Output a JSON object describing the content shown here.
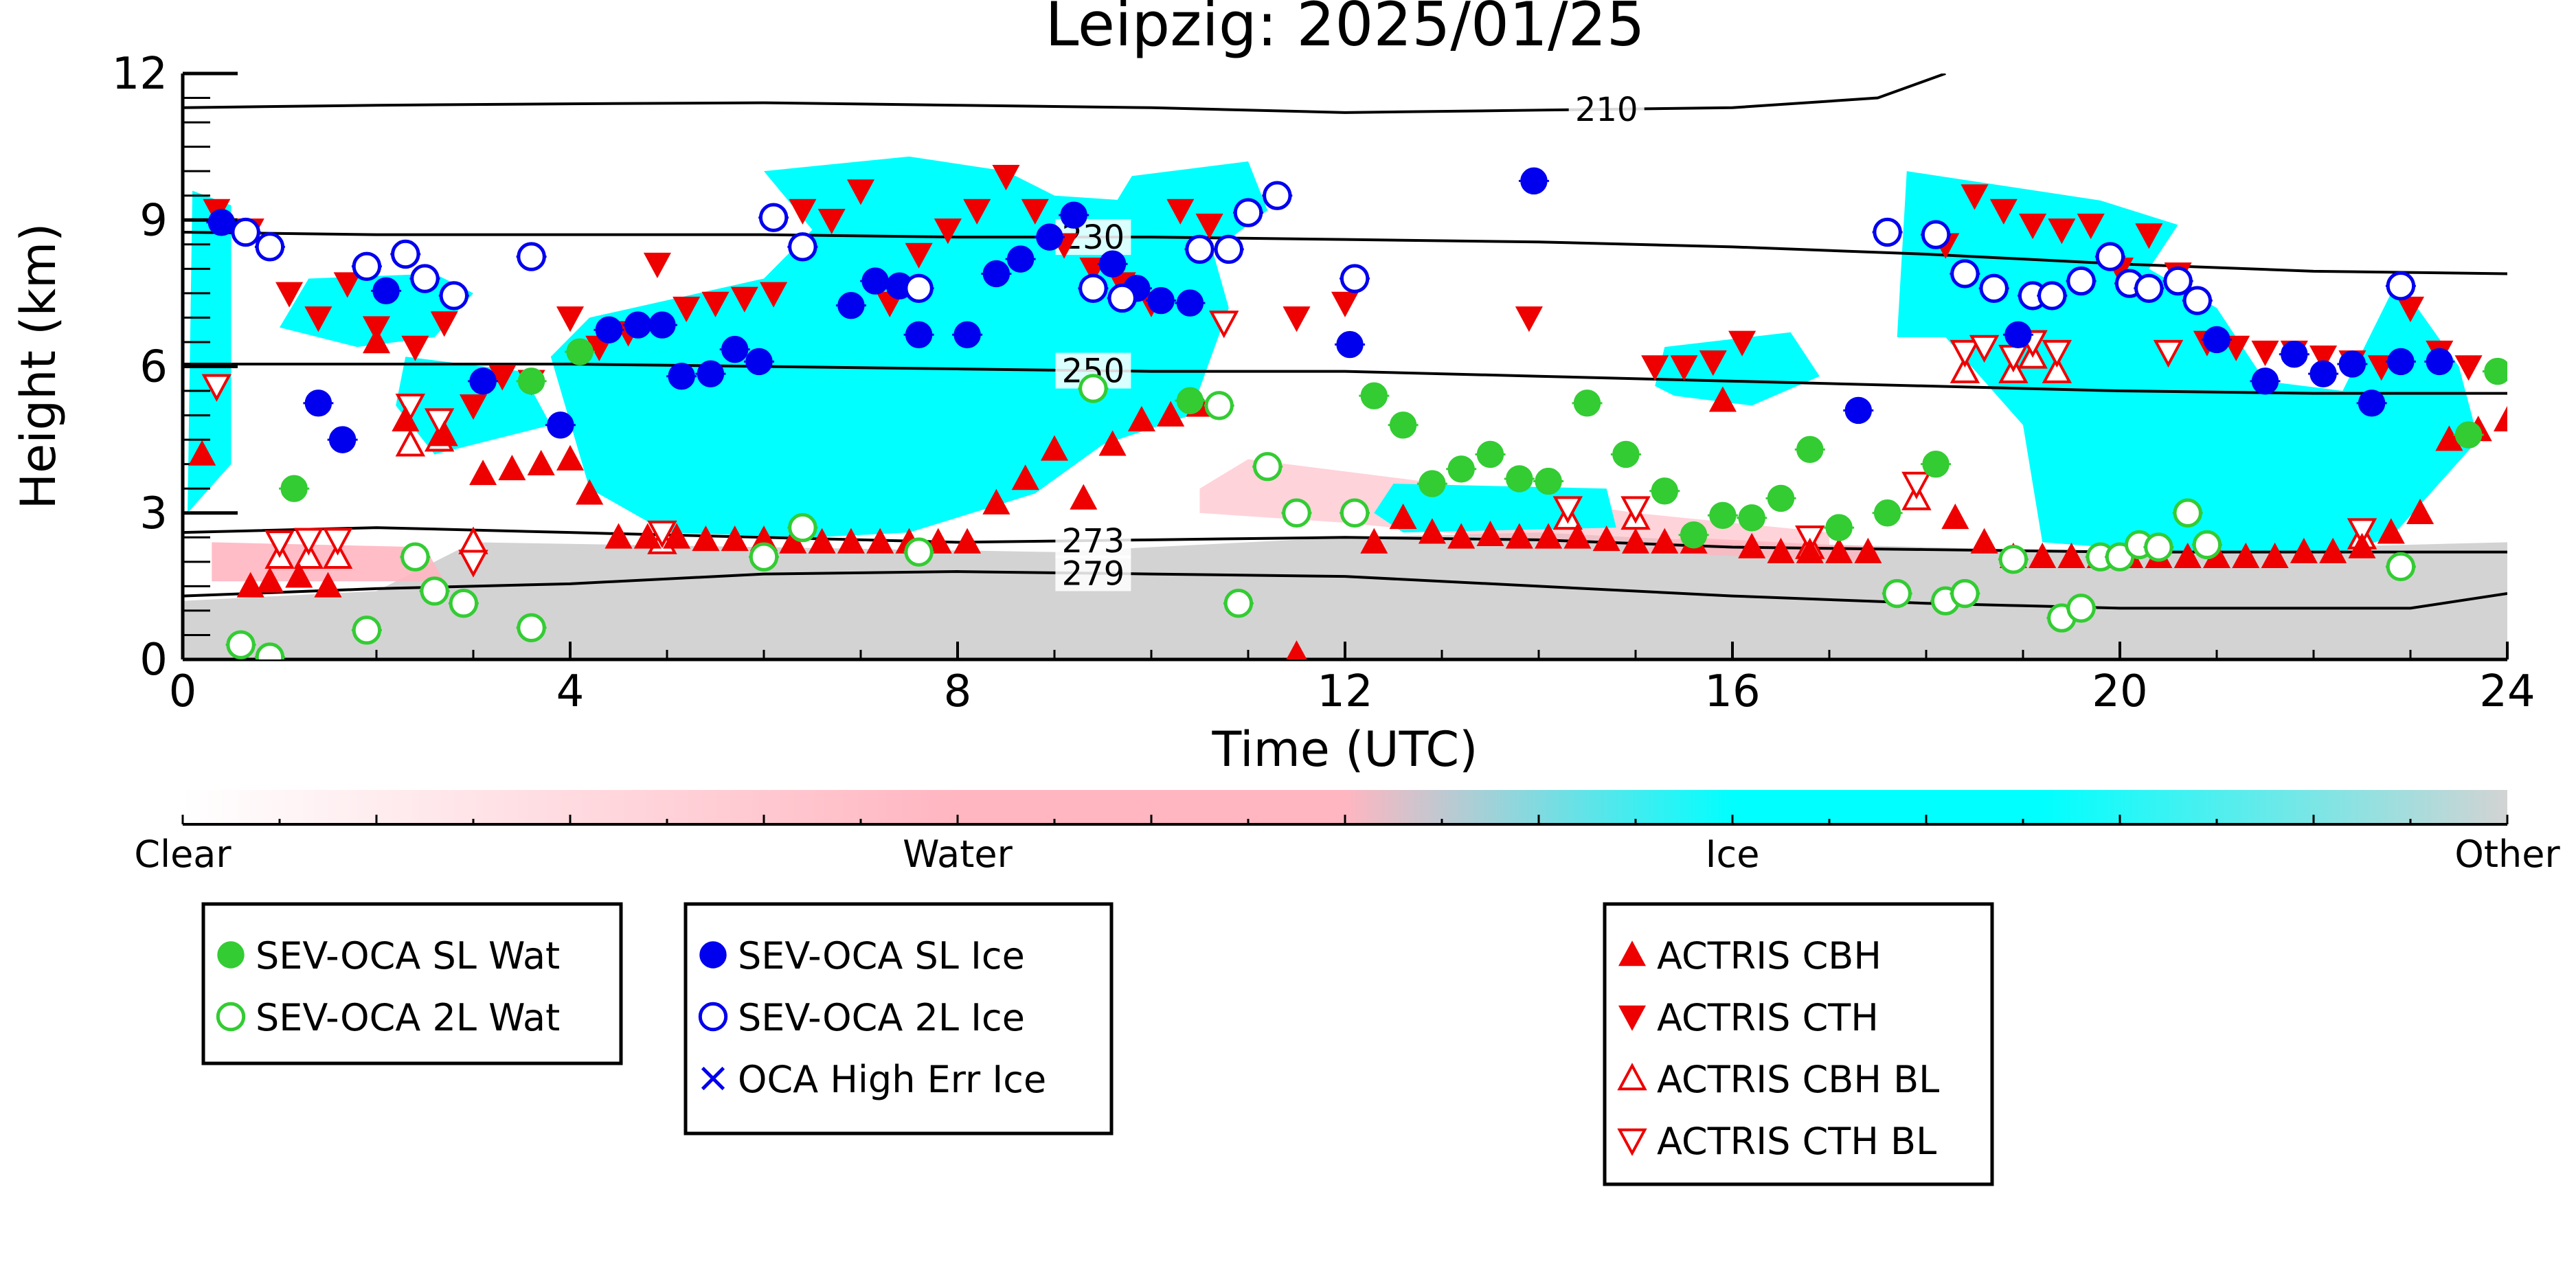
{
  "chart_data": {
    "type": "scatter",
    "title": "Leipzig: 2025/01/25",
    "xlabel": "Time (UTC)",
    "ylabel": "Height (km)",
    "xlim": [
      0,
      24
    ],
    "ylim": [
      0,
      12
    ],
    "x_ticks": [
      "0",
      "4",
      "8",
      "12",
      "16",
      "20",
      "24"
    ],
    "y_ticks": [
      "0",
      "3",
      "6",
      "9",
      "12"
    ],
    "colorbar": {
      "labels": [
        "Clear",
        "Water",
        "Ice",
        "Other"
      ],
      "colors": [
        "#ffffff",
        "#ffb6c1",
        "#00ffff",
        "#d3d3d3"
      ]
    },
    "isotherms": [
      {
        "label": "210",
        "x": [
          0,
          2,
          4,
          6,
          8,
          10,
          12,
          14,
          16,
          17.5,
          18.2
        ],
        "y": [
          11.3,
          11.35,
          11.38,
          11.4,
          11.35,
          11.3,
          11.2,
          11.25,
          11.3,
          11.5,
          12.0
        ]
      },
      {
        "label": "230",
        "x": [
          0,
          2,
          4,
          6,
          8,
          10,
          12,
          14,
          16,
          18,
          20,
          22,
          24
        ],
        "y": [
          8.75,
          8.7,
          8.7,
          8.7,
          8.65,
          8.65,
          8.6,
          8.55,
          8.45,
          8.3,
          8.1,
          7.95,
          7.9
        ]
      },
      {
        "label": "250",
        "x": [
          0,
          2,
          4,
          6,
          8,
          10,
          12,
          14,
          16,
          18,
          20,
          22,
          24
        ],
        "y": [
          6.05,
          6.05,
          6.05,
          6.0,
          5.95,
          5.9,
          5.9,
          5.8,
          5.7,
          5.6,
          5.5,
          5.45,
          5.45
        ]
      },
      {
        "label": "273",
        "x": [
          0,
          2,
          4,
          6,
          8,
          10,
          12,
          14,
          16,
          18,
          20,
          22,
          24
        ],
        "y": [
          2.6,
          2.7,
          2.6,
          2.5,
          2.4,
          2.45,
          2.5,
          2.45,
          2.3,
          2.25,
          2.2,
          2.2,
          2.2
        ]
      },
      {
        "label": "279",
        "x": [
          0,
          2,
          4,
          6,
          8,
          10,
          12,
          14,
          16,
          18,
          19,
          20,
          22,
          23,
          24
        ],
        "y": [
          1.3,
          1.45,
          1.55,
          1.75,
          1.8,
          1.75,
          1.7,
          1.5,
          1.3,
          1.15,
          1.1,
          1.05,
          1.05,
          1.05,
          1.35
        ]
      }
    ],
    "series": [
      {
        "name": "SEV-OCA SL Wat",
        "marker": "filled-circle",
        "color": "#33cc33",
        "x": [
          1.15,
          3.6,
          4.1,
          10.4,
          12.3,
          12.6,
          12.9,
          13.2,
          13.5,
          13.8,
          14.1,
          14.5,
          14.9,
          15.3,
          15.6,
          15.9,
          16.2,
          16.5,
          16.8,
          17.1,
          17.6,
          18.1,
          23.6,
          23.9
        ],
        "y": [
          3.5,
          5.7,
          6.3,
          5.3,
          5.4,
          4.8,
          3.6,
          3.9,
          4.2,
          3.7,
          3.65,
          5.25,
          4.2,
          3.45,
          2.55,
          2.95,
          2.9,
          3.3,
          4.3,
          2.7,
          3.0,
          4.0,
          4.6,
          5.9
        ]
      },
      {
        "name": "SEV-OCA 2L Wat",
        "marker": "open-circle",
        "color": "#33cc33",
        "x": [
          0.6,
          0.9,
          1.9,
          2.4,
          2.6,
          2.9,
          3.6,
          6.0,
          6.4,
          7.6,
          9.4,
          10.7,
          10.9,
          11.2,
          11.5,
          12.1,
          17.7,
          18.2,
          18.4,
          18.9,
          19.4,
          19.6,
          19.8,
          20.0,
          20.2,
          20.4,
          20.7,
          20.9,
          22.9
        ],
        "y": [
          0.3,
          0.05,
          0.6,
          2.1,
          1.4,
          1.15,
          0.65,
          2.1,
          2.7,
          2.2,
          5.55,
          5.2,
          1.15,
          3.95,
          3.0,
          3.0,
          1.35,
          1.2,
          1.35,
          2.05,
          0.85,
          1.05,
          2.1,
          2.1,
          2.35,
          2.3,
          3.0,
          2.35,
          1.9
        ]
      },
      {
        "name": "SEV-OCA SL Ice",
        "marker": "filled-circle",
        "color": "#0000ee",
        "x": [
          0.4,
          1.4,
          1.65,
          2.1,
          3.1,
          3.9,
          4.4,
          4.7,
          4.95,
          5.15,
          5.45,
          5.7,
          5.95,
          6.9,
          7.15,
          7.4,
          7.6,
          8.1,
          8.4,
          8.65,
          8.95,
          9.2,
          9.6,
          9.85,
          10.1,
          10.4,
          12.05,
          13.95,
          17.3,
          18.95,
          21.0,
          21.5,
          21.8,
          22.1,
          22.4,
          22.6,
          22.9,
          23.3
        ],
        "y": [
          8.95,
          5.25,
          4.5,
          7.55,
          5.7,
          4.8,
          6.75,
          6.85,
          6.85,
          5.8,
          5.85,
          6.35,
          6.1,
          7.25,
          7.75,
          7.65,
          6.65,
          6.65,
          7.9,
          8.2,
          8.65,
          9.1,
          8.1,
          7.6,
          7.35,
          7.3,
          6.45,
          9.8,
          5.1,
          6.65,
          6.55,
          5.7,
          6.25,
          5.85,
          6.05,
          5.25,
          6.1,
          6.1
        ]
      },
      {
        "name": "SEV-OCA 2L Ice",
        "marker": "open-circle",
        "color": "#0000ee",
        "x": [
          0.65,
          0.9,
          1.9,
          2.3,
          2.5,
          2.8,
          3.6,
          6.1,
          6.4,
          7.6,
          9.4,
          9.7,
          10.5,
          10.8,
          11.0,
          11.3,
          12.1,
          17.6,
          18.1,
          18.4,
          18.7,
          19.1,
          19.3,
          19.6,
          19.9,
          20.1,
          20.3,
          20.6,
          20.8,
          22.9
        ],
        "y": [
          8.75,
          8.45,
          8.05,
          8.3,
          7.8,
          7.45,
          8.25,
          9.05,
          8.45,
          7.6,
          7.6,
          7.4,
          8.4,
          8.4,
          9.15,
          9.5,
          7.8,
          8.75,
          8.7,
          7.9,
          7.6,
          7.45,
          7.45,
          7.75,
          8.25,
          7.7,
          7.6,
          7.75,
          7.35,
          7.65
        ]
      },
      {
        "name": "OCA High Err Ice",
        "marker": "x",
        "color": "#0000ee",
        "x": [],
        "y": []
      },
      {
        "name": "ACTRIS CBH",
        "marker": "filled-triangle-up",
        "color": "#ee0000",
        "x": [
          0.2,
          0.7,
          0.9,
          1.2,
          1.5,
          2.0,
          2.3,
          2.7,
          3.1,
          3.4,
          3.7,
          4.0,
          4.2,
          4.5,
          4.8,
          5.1,
          5.4,
          5.7,
          6.0,
          6.3,
          6.6,
          6.9,
          7.2,
          7.5,
          7.8,
          8.1,
          8.4,
          8.7,
          9.0,
          9.3,
          9.6,
          9.9,
          10.2,
          10.5,
          11.5,
          12.3,
          12.6,
          12.9,
          13.2,
          13.5,
          13.8,
          14.1,
          14.4,
          14.7,
          15.0,
          15.3,
          15.6,
          15.9,
          16.2,
          16.5,
          16.8,
          17.1,
          17.4,
          18.3,
          18.6,
          18.9,
          19.2,
          19.5,
          19.8,
          20.1,
          20.4,
          20.7,
          21.0,
          21.3,
          21.6,
          21.9,
          22.2,
          22.5,
          22.8,
          23.1,
          23.4,
          23.7,
          24.0
        ],
        "y": [
          4.2,
          1.5,
          1.6,
          1.7,
          1.5,
          6.5,
          4.9,
          4.6,
          3.8,
          3.9,
          4.0,
          4.1,
          3.4,
          2.5,
          2.5,
          2.5,
          2.45,
          2.45,
          2.45,
          2.4,
          2.4,
          2.4,
          2.4,
          2.4,
          2.4,
          2.4,
          3.2,
          3.7,
          4.3,
          3.3,
          4.4,
          4.9,
          5.0,
          5.2,
          0.1,
          2.4,
          2.9,
          2.6,
          2.5,
          2.55,
          2.5,
          2.5,
          2.5,
          2.45,
          2.4,
          2.4,
          2.4,
          5.3,
          2.3,
          2.2,
          2.2,
          2.2,
          2.2,
          2.9,
          2.4,
          2.1,
          2.1,
          2.1,
          2.1,
          2.1,
          2.1,
          2.1,
          2.1,
          2.1,
          2.1,
          2.2,
          2.2,
          2.3,
          2.6,
          3.0,
          4.5,
          4.7,
          4.9
        ]
      },
      {
        "name": "ACTRIS CTH",
        "marker": "filled-triangle-down",
        "color": "#ee0000",
        "x": [
          0.35,
          0.7,
          1.1,
          1.4,
          1.7,
          2.0,
          2.4,
          2.7,
          3.0,
          3.3,
          3.6,
          4.0,
          4.3,
          4.6,
          4.9,
          5.2,
          5.5,
          5.8,
          6.1,
          6.4,
          6.7,
          7.0,
          7.3,
          7.6,
          7.9,
          8.2,
          8.5,
          8.8,
          9.1,
          9.4,
          9.7,
          10.0,
          10.3,
          10.6,
          11.5,
          12.0,
          13.9,
          15.2,
          15.5,
          15.8,
          16.1,
          18.2,
          18.5,
          18.8,
          19.1,
          19.4,
          19.7,
          20.0,
          20.3,
          20.6,
          20.9,
          21.2,
          21.5,
          21.8,
          22.1,
          22.4,
          22.7,
          23.0,
          23.3,
          23.6
        ],
        "y": [
          9.2,
          8.8,
          7.5,
          7.0,
          7.7,
          6.8,
          6.4,
          6.9,
          5.2,
          5.8,
          5.7,
          7.0,
          6.4,
          6.7,
          8.1,
          7.2,
          7.3,
          7.4,
          7.5,
          9.2,
          9.0,
          9.6,
          7.3,
          8.3,
          8.8,
          9.2,
          9.9,
          9.2,
          8.5,
          8.0,
          7.7,
          7.3,
          9.2,
          8.9,
          7.0,
          7.3,
          7.0,
          6.0,
          6.0,
          6.1,
          6.5,
          8.5,
          9.5,
          9.2,
          8.9,
          8.8,
          8.9,
          8.0,
          8.7,
          7.9,
          6.5,
          6.4,
          6.3,
          6.3,
          6.2,
          6.1,
          6.0,
          7.2,
          6.3,
          6.0
        ]
      },
      {
        "name": "ACTRIS CBH BL",
        "marker": "open-triangle-up",
        "color": "#ee0000",
        "x": [
          1.0,
          1.3,
          1.6,
          2.35,
          2.65,
          3.0,
          4.95,
          14.3,
          15.0,
          16.8,
          17.9,
          18.4,
          18.9,
          19.1,
          19.35,
          22.5
        ],
        "y": [
          2.1,
          2.1,
          2.1,
          4.4,
          4.5,
          2.4,
          2.4,
          2.9,
          2.9,
          2.3,
          3.3,
          5.9,
          5.9,
          6.2,
          5.9,
          2.5
        ]
      },
      {
        "name": "ACTRIS CTH BL",
        "marker": "open-triangle-down",
        "color": "#ee0000",
        "x": [
          0.35,
          1.0,
          1.3,
          1.6,
          2.35,
          2.65,
          3.0,
          4.95,
          10.75,
          14.3,
          15.0,
          16.8,
          17.9,
          18.4,
          18.6,
          18.9,
          19.1,
          19.35,
          20.5,
          22.5
        ],
        "y": [
          5.6,
          2.4,
          2.45,
          2.45,
          5.2,
          4.9,
          2.0,
          2.6,
          6.9,
          3.1,
          3.1,
          2.5,
          3.6,
          6.3,
          6.4,
          6.2,
          6.5,
          6.3,
          6.3,
          2.65
        ]
      }
    ],
    "legend": [
      [
        "SEV-OCA SL Wat",
        "SEV-OCA 2L Wat"
      ],
      [
        "SEV-OCA SL Ice",
        "SEV-OCA 2L Ice",
        "OCA High Err Ice"
      ],
      [
        "ACTRIS CBH",
        "ACTRIS CTH",
        "ACTRIS CBH BL",
        "ACTRIS CTH BL"
      ]
    ]
  }
}
